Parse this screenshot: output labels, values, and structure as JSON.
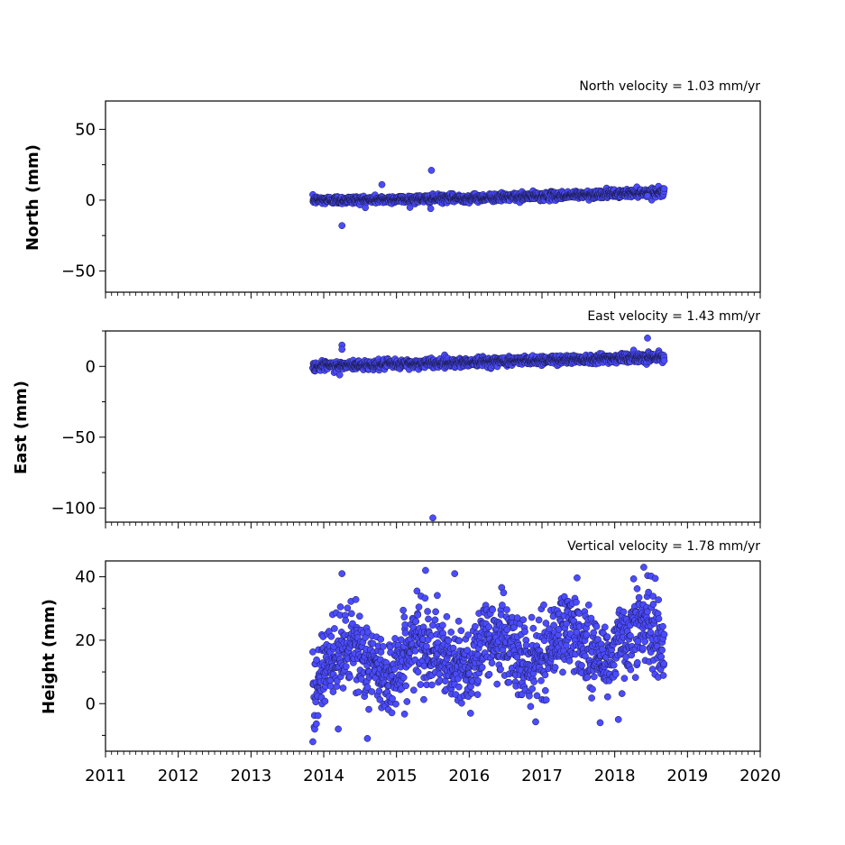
{
  "chart_data": [
    {
      "type": "scatter",
      "title": "North velocity = 1.03 mm/yr",
      "ylabel": "North (mm)",
      "xlim": [
        2011,
        2020
      ],
      "ylim": [
        -65,
        70
      ],
      "yticks": [
        -50,
        0,
        50
      ],
      "ytick_labels": [
        "−50",
        "0",
        "50"
      ],
      "series": [
        {
          "x_range": [
            2013.85,
            2018.68
          ],
          "trend": {
            "start": 0,
            "rate_per_year": 1.03
          },
          "outliers": [
            [
              2014.25,
              -18
            ],
            [
              2015.48,
              21
            ],
            [
              2015.47,
              -6
            ],
            [
              2014.8,
              11
            ],
            [
              2018.45,
              3
            ]
          ]
        }
      ]
    },
    {
      "type": "scatter",
      "title": "East velocity = 1.43 mm/yr",
      "ylabel": "East (mm)",
      "xlim": [
        2011,
        2020
      ],
      "ylim": [
        -110,
        25
      ],
      "yticks": [
        -100,
        -50,
        0
      ],
      "ytick_labels": [
        "−100",
        "−50",
        "0"
      ],
      "series": [
        {
          "x_range": [
            2013.85,
            2018.68
          ],
          "trend": {
            "start": 0,
            "rate_per_year": 1.43
          },
          "outliers": [
            [
              2015.5,
              -107
            ],
            [
              2018.45,
              20
            ],
            [
              2014.25,
              15
            ],
            [
              2014.25,
              12
            ],
            [
              2014.22,
              -6
            ]
          ]
        }
      ]
    },
    {
      "type": "scatter",
      "title": "Vertical velocity = 1.78 mm/yr",
      "ylabel": "Height (mm)",
      "xlim": [
        2011,
        2020
      ],
      "ylim": [
        -15,
        45
      ],
      "yticks": [
        0,
        20,
        40
      ],
      "ytick_labels": [
        "0",
        "20",
        "40"
      ],
      "series": [
        {
          "x_range": [
            2013.85,
            2018.68
          ],
          "trend": {
            "start": 12,
            "rate_per_year": 1.78
          },
          "outliers": [
            [
              2014.25,
              41
            ],
            [
              2015.4,
              42
            ],
            [
              2015.8,
              41
            ],
            [
              2018.4,
              43
            ],
            [
              2013.85,
              -12
            ],
            [
              2014.6,
              -11
            ],
            [
              2014.2,
              -8
            ],
            [
              2017.8,
              -6
            ],
            [
              2018.05,
              -5
            ]
          ]
        }
      ]
    }
  ],
  "xticks": [
    2011,
    2012,
    2013,
    2014,
    2015,
    2016,
    2017,
    2018,
    2019,
    2020
  ],
  "xtick_labels": [
    "2011",
    "2012",
    "2013",
    "2014",
    "2015",
    "2016",
    "2017",
    "2018",
    "2019",
    "2020"
  ],
  "colors": {
    "marker_fill": "#4b4bff",
    "marker_edge": "#1a1a4a",
    "axes": "#000000"
  }
}
